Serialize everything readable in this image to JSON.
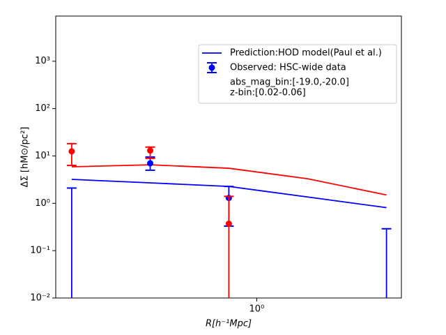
{
  "chart_data": {
    "type": "line",
    "xlabel": "R[h⁻¹Mpc]",
    "ylabel": "ΔΣ [hM⊙/pc²]",
    "xlog": true,
    "ylog": true,
    "x": [
      0.142,
      0.325,
      0.745,
      1.71,
      3.93
    ],
    "xlim": [
      0.12,
      4.6
    ],
    "ylim": [
      0.01,
      9000
    ],
    "xticks": [
      {
        "value": 1,
        "label": "10⁰"
      }
    ],
    "yticks": [
      {
        "value": 0.01,
        "label": "10⁻²"
      },
      {
        "value": 0.1,
        "label": "10⁻¹"
      },
      {
        "value": 1,
        "label": "10⁰"
      },
      {
        "value": 10,
        "label": "10¹"
      },
      {
        "value": 100,
        "label": "10²"
      },
      {
        "value": 1000,
        "label": "10³"
      }
    ],
    "legend": "upper right",
    "legend_note": [
      "abs_mag_bin:[-19.0,-20.0]",
      "z-bin:[0.02-0.06]"
    ],
    "series": [
      {
        "name": "Prediction:HOD model(Paul et al.)",
        "style": "line",
        "color": "#0000ff",
        "values": [
          3.2,
          2.7,
          2.27,
          1.36,
          0.81
        ]
      },
      {
        "style": "line",
        "color": "#ff0000",
        "values": [
          5.9,
          6.5,
          5.5,
          3.3,
          1.5
        ]
      },
      {
        "name": "Observed: HSC-wide data",
        "style": "errorbar",
        "color": "#0000ff",
        "values": [
          null,
          7.0,
          1.3,
          null,
          null
        ],
        "lower": [
          null,
          5.0,
          0.33,
          null,
          null
        ],
        "upper": [
          2.1,
          9.5,
          2.27,
          null,
          0.29
        ]
      },
      {
        "style": "errorbar",
        "color": "#ff0000",
        "values": [
          12.5,
          13,
          0.37,
          null,
          null
        ],
        "lower": [
          6.3,
          8.9,
          null,
          null,
          null
        ],
        "upper": [
          18.2,
          15.4,
          1.4,
          null,
          null
        ]
      }
    ]
  }
}
